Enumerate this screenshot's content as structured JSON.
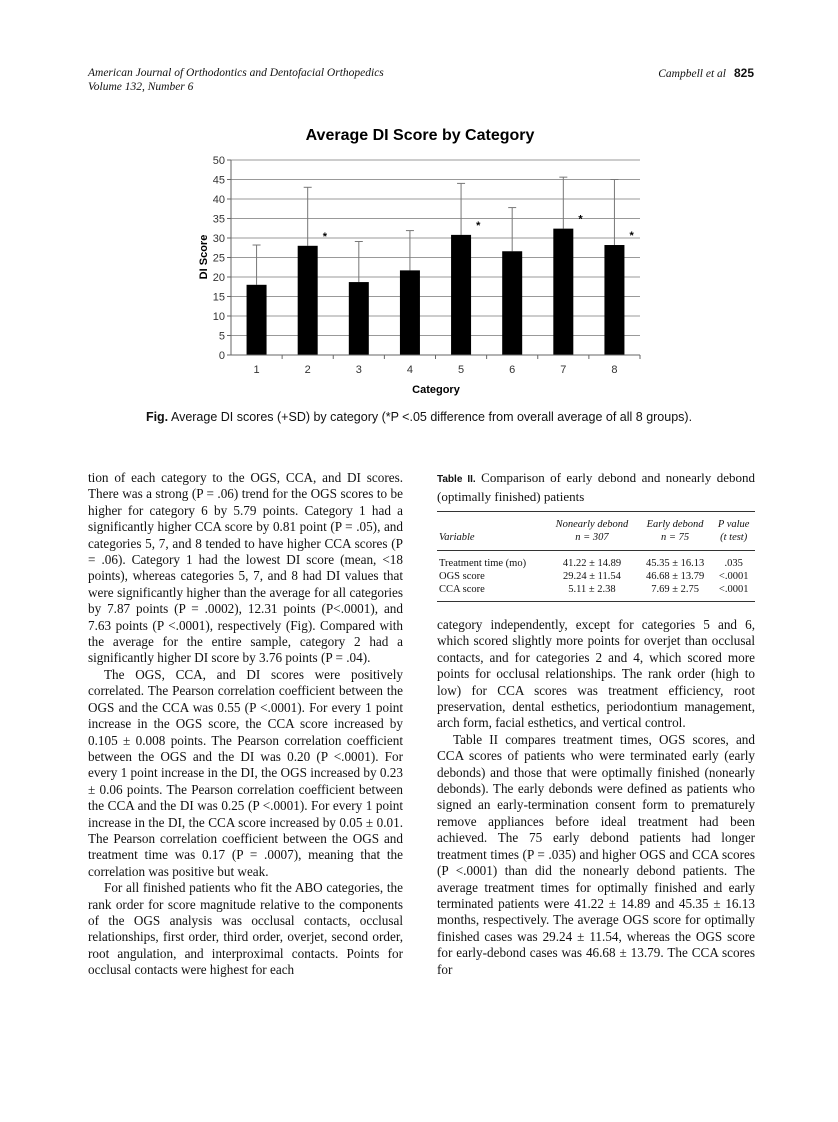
{
  "header": {
    "journal": "American Journal of Orthodontics and Dentofacial Orthopedics",
    "volume": "Volume 132, Number 6",
    "authors": "Campbell et al",
    "page_number": "825"
  },
  "chart_data": {
    "type": "bar",
    "title": "Average DI Score by Category",
    "xlabel": "Category",
    "ylabel": "DI Score",
    "categories": [
      "1",
      "2",
      "3",
      "4",
      "5",
      "6",
      "7",
      "8"
    ],
    "values": [
      18.0,
      28.0,
      18.7,
      21.7,
      30.8,
      26.6,
      32.4,
      28.2
    ],
    "error_upper": [
      28.2,
      43.0,
      29.1,
      31.9,
      44.0,
      37.8,
      45.6,
      45.0
    ],
    "significant": [
      false,
      true,
      false,
      false,
      true,
      false,
      true,
      true
    ],
    "significance_marker": "*",
    "ylim": [
      0,
      50
    ],
    "yticks": [
      "0",
      "5",
      "10",
      "15",
      "20",
      "25",
      "30",
      "35",
      "40",
      "45",
      "50"
    ],
    "grid": true,
    "bar_color": "#000000"
  },
  "caption": {
    "label": "Fig.",
    "text": "Average DI scores (+SD) by category (*P <.05 difference from overall average of all 8 groups)."
  },
  "left_column": [
    "tion of each category to the OGS, CCA, and DI scores. There was a strong (P = .06) trend for the OGS scores to be higher for category 6 by 5.79 points. Category 1 had a significantly higher CCA score by 0.81 point (P = .05), and categories 5, 7, and 8 tended to have higher CCA scores (P = .06). Category 1 had the lowest DI score (mean, <18 points), whereas categories 5, 7, and 8 had DI values that were significantly higher than the average for all categories by 7.87 points (P = .0002), 12.31 points (P<.0001), and 7.63 points (P <.0001), respectively (Fig). Compared with the average for the entire sample, category 2 had a significantly higher DI score by 3.76 points (P = .04).",
    "The OGS, CCA, and DI scores were positively correlated. The Pearson correlation coefficient between the OGS and the CCA was 0.55 (P <.0001). For every 1 point increase in the OGS score, the CCA score increased by 0.105 ± 0.008 points. The Pearson correlation coefficient between the OGS and the DI was 0.20 (P <.0001). For every 1 point increase in the DI, the OGS increased by 0.23 ± 0.06 points. The Pearson correlation coefficient between the CCA and the DI was 0.25 (P <.0001). For every 1 point increase in the DI, the CCA score increased by 0.05 ± 0.01. The Pearson correlation coefficient between the OGS and treatment time was 0.17 (P = .0007), meaning that the correlation was positive but weak.",
    "For all finished patients who fit the ABO categories, the rank order for score magnitude relative to the components of the OGS analysis was occlusal contacts, occlusal relationships, first order, third order, overjet, second order, root angulation, and interproximal contacts. Points for occlusal contacts were highest for each"
  ],
  "table": {
    "label": "Table II.",
    "title": "Comparison of early debond and nonearly debond (optimally finished) patients",
    "headers": [
      {
        "line1": "",
        "line2": "Variable"
      },
      {
        "line1": "Nonearly debond",
        "line2": "n = 307"
      },
      {
        "line1": "Early debond",
        "line2": "n = 75"
      },
      {
        "line1": "P value",
        "line2": "(t test)"
      }
    ],
    "rows": [
      [
        "Treatment time (mo)",
        "41.22 ± 14.89",
        "45.35 ± 16.13",
        ".035"
      ],
      [
        "OGS score",
        "29.24 ± 11.54",
        "46.68 ± 13.79",
        "<.0001"
      ],
      [
        "CCA score",
        "5.11 ± 2.38",
        "7.69 ± 2.75",
        "<.0001"
      ]
    ]
  },
  "right_column": [
    "category independently, except for categories 5 and 6, which scored slightly more points for overjet than occlusal contacts, and for categories 2 and 4, which scored more points for occlusal relationships. The rank order (high to low) for CCA scores was treatment efficiency, root preservation, dental esthetics, periodontium management, arch form, facial esthetics, and vertical control.",
    "Table II compares treatment times, OGS scores, and CCA scores of patients who were terminated early (early debonds) and those that were optimally finished (nonearly debonds). The early debonds were defined as patients who signed an early-termination consent form to prematurely remove appliances before ideal treatment had been achieved. The 75 early debond patients had longer treatment times (P = .035) and higher OGS and CCA scores (P <.0001) than did the nonearly debond patients. The average treatment times for optimally finished and early terminated patients were 41.22 ± 14.89 and 45.35 ± 16.13 months, respectively. The average OGS score for optimally finished cases was 29.24 ± 11.54, whereas the OGS score for early-debond cases was 46.68 ± 13.79. The CCA scores for"
  ]
}
